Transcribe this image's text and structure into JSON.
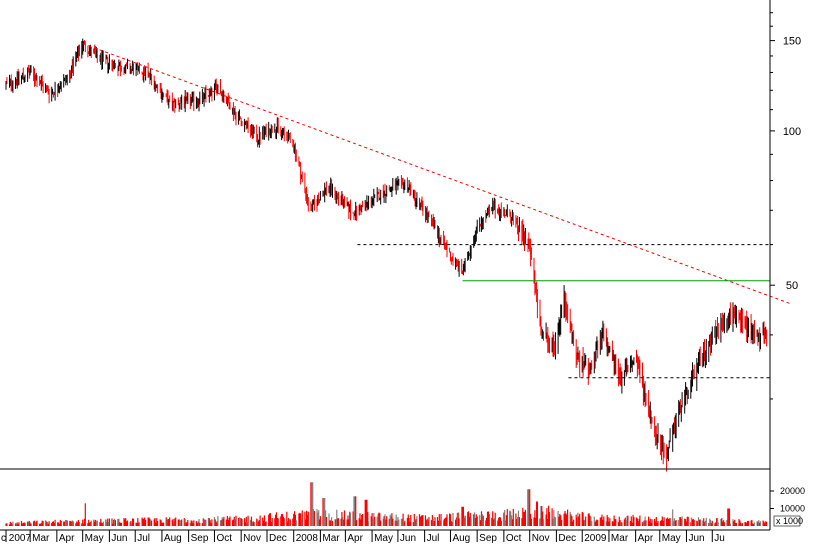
{
  "chart_data": {
    "type": "candlestick",
    "price_axis": {
      "scale": "log",
      "ticks": [
        150,
        100,
        50
      ],
      "tick_labels": [
        "150",
        "100",
        "50"
      ],
      "range": [
        22,
        180
      ]
    },
    "volume_axis": {
      "ticks": [
        20000,
        10000
      ],
      "tick_labels": [
        "20000",
        "10000"
      ],
      "unit_label": "x 1000",
      "range": [
        0,
        32000
      ]
    },
    "x_axis": {
      "labels": [
        "c 2007",
        "Mar",
        "Apr",
        "May",
        "Jun",
        "Jul",
        "Aug",
        "Sep",
        "Oct",
        "Nov",
        "Dec",
        "2008",
        "Mar",
        "Apr",
        "May",
        "Jun",
        "Jul",
        "Aug",
        "Sep",
        "Oct",
        "Nov",
        "Dec",
        "2009",
        "Mar",
        "Apr",
        "May",
        "Jun",
        "Ju"
      ],
      "date_range": [
        "2007-02",
        "2009-07"
      ]
    },
    "price_path": [
      [
        "2007-02-01",
        123
      ],
      [
        "2007-03-01",
        130
      ],
      [
        "2007-03-25",
        118
      ],
      [
        "2007-04-15",
        128
      ],
      [
        "2007-05-01",
        148
      ],
      [
        "2007-05-20",
        138
      ],
      [
        "2007-06-15",
        133
      ],
      [
        "2007-07-15",
        130
      ],
      [
        "2007-08-10",
        113
      ],
      [
        "2007-09-15",
        115
      ],
      [
        "2007-10-05",
        122
      ],
      [
        "2007-10-25",
        108
      ],
      [
        "2007-11-20",
        97
      ],
      [
        "2007-12-10",
        102
      ],
      [
        "2007-12-31",
        95
      ],
      [
        "2008-01-20",
        70
      ],
      [
        "2008-02-10",
        78
      ],
      [
        "2008-03-10",
        69
      ],
      [
        "2008-04-15",
        76
      ],
      [
        "2008-05-10",
        79
      ],
      [
        "2008-06-10",
        66
      ],
      [
        "2008-07-01",
        57
      ],
      [
        "2008-07-15",
        53
      ],
      [
        "2008-08-01",
        65
      ],
      [
        "2008-08-20",
        71
      ],
      [
        "2008-09-10",
        68
      ],
      [
        "2008-09-30",
        60
      ],
      [
        "2008-10-15",
        40
      ],
      [
        "2008-10-30",
        38
      ],
      [
        "2008-11-10",
        47
      ],
      [
        "2008-11-25",
        36
      ],
      [
        "2008-12-10",
        34
      ],
      [
        "2008-12-25",
        40
      ],
      [
        "2009-01-15",
        33
      ],
      [
        "2009-02-01",
        36
      ],
      [
        "2009-02-20",
        27
      ],
      [
        "2009-03-08",
        23
      ],
      [
        "2009-03-25",
        29
      ],
      [
        "2009-04-15",
        35
      ],
      [
        "2009-05-01",
        40
      ],
      [
        "2009-05-25",
        44
      ],
      [
        "2009-06-15",
        41
      ],
      [
        "2009-07-05",
        39
      ]
    ],
    "volume_path": [
      [
        "2007-02-01",
        1500
      ],
      [
        "2007-05-01",
        2500
      ],
      [
        "2007-08-01",
        3000
      ],
      [
        "2007-11-01",
        3500
      ],
      [
        "2008-01-25",
        6000
      ],
      [
        "2008-03-15",
        5000
      ],
      [
        "2008-06-01",
        4000
      ],
      [
        "2008-09-15",
        6000
      ],
      [
        "2008-10-20",
        7000
      ],
      [
        "2008-12-15",
        4000
      ],
      [
        "2009-03-10",
        3500
      ],
      [
        "2009-07-05",
        2000
      ]
    ],
    "volume_spikes": [
      [
        "2007-05-05",
        13000
      ],
      [
        "2008-01-22",
        25000
      ],
      [
        "2008-02-05",
        16000
      ],
      [
        "2008-03-12",
        17000
      ],
      [
        "2008-03-25",
        15000
      ],
      [
        "2008-07-15",
        11000
      ],
      [
        "2008-09-30",
        21000
      ],
      [
        "2008-10-10",
        14000
      ],
      [
        "2009-03-15",
        9500
      ],
      [
        "2009-05-20",
        10000
      ]
    ],
    "annotations": [
      {
        "kind": "trendline",
        "style": "dashed",
        "color": "#ff0000",
        "from": [
          "2007-05-01",
          148
        ],
        "to": [
          "2009-07-31",
          46
        ]
      },
      {
        "kind": "horizontal",
        "style": "dashed",
        "color": "#000000",
        "value": 60,
        "from": "2008-03-15",
        "to": "2009-07-31"
      },
      {
        "kind": "horizontal",
        "style": "solid",
        "color": "#00a000",
        "value": 51,
        "from": "2008-07-15",
        "to": "2009-07-31"
      },
      {
        "kind": "horizontal",
        "style": "dashed",
        "color": "#000000",
        "value": 33,
        "from": "2008-11-15",
        "to": "2009-07-31"
      }
    ],
    "colors": {
      "up": "#000000",
      "down": "#ff0000",
      "volume": "#ff0000",
      "volume_alt": "#808080"
    },
    "grid": false
  }
}
